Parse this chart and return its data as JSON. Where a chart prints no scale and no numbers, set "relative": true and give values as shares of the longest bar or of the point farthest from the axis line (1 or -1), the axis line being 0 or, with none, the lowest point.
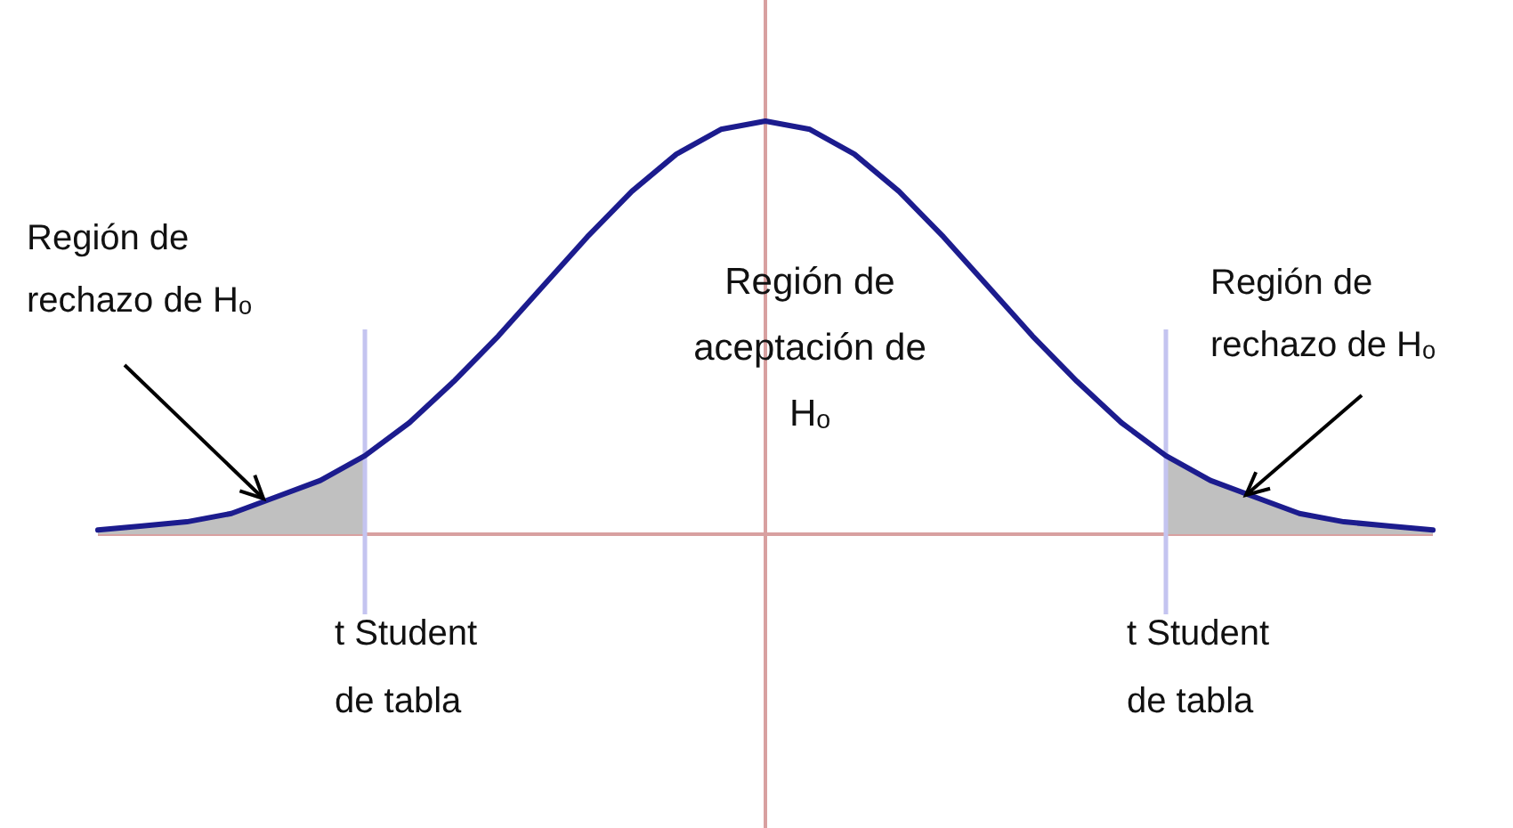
{
  "chart_data": {
    "type": "line",
    "relative": true,
    "categories": [
      null,
      null,
      null,
      null,
      null,
      null,
      null,
      null,
      null,
      null,
      null,
      null,
      null,
      null,
      null,
      null,
      null,
      null,
      null,
      null,
      null,
      null,
      null,
      null,
      null,
      null,
      null,
      null,
      null,
      null,
      null
    ],
    "series": [
      {
        "color": "#1c1c8e",
        "values": [
          0.01,
          0.02,
          0.03,
          0.05,
          0.09,
          0.13,
          0.19,
          0.27,
          0.37,
          0.48,
          0.6,
          0.72,
          0.83,
          0.92,
          0.98,
          1,
          0.98,
          0.92,
          0.83,
          0.72,
          0.6,
          0.48,
          0.37,
          0.27,
          0.19,
          0.13,
          0.09,
          0.05,
          0.03,
          0.02,
          0.01
        ]
      }
    ],
    "annotations": [
      "Región de rechazo de Hₒ",
      "Región de aceptación de Hₒ",
      "Región de rechazo de Hₒ",
      "t Student de tabla",
      "t Student de tabla"
    ]
  }
}
